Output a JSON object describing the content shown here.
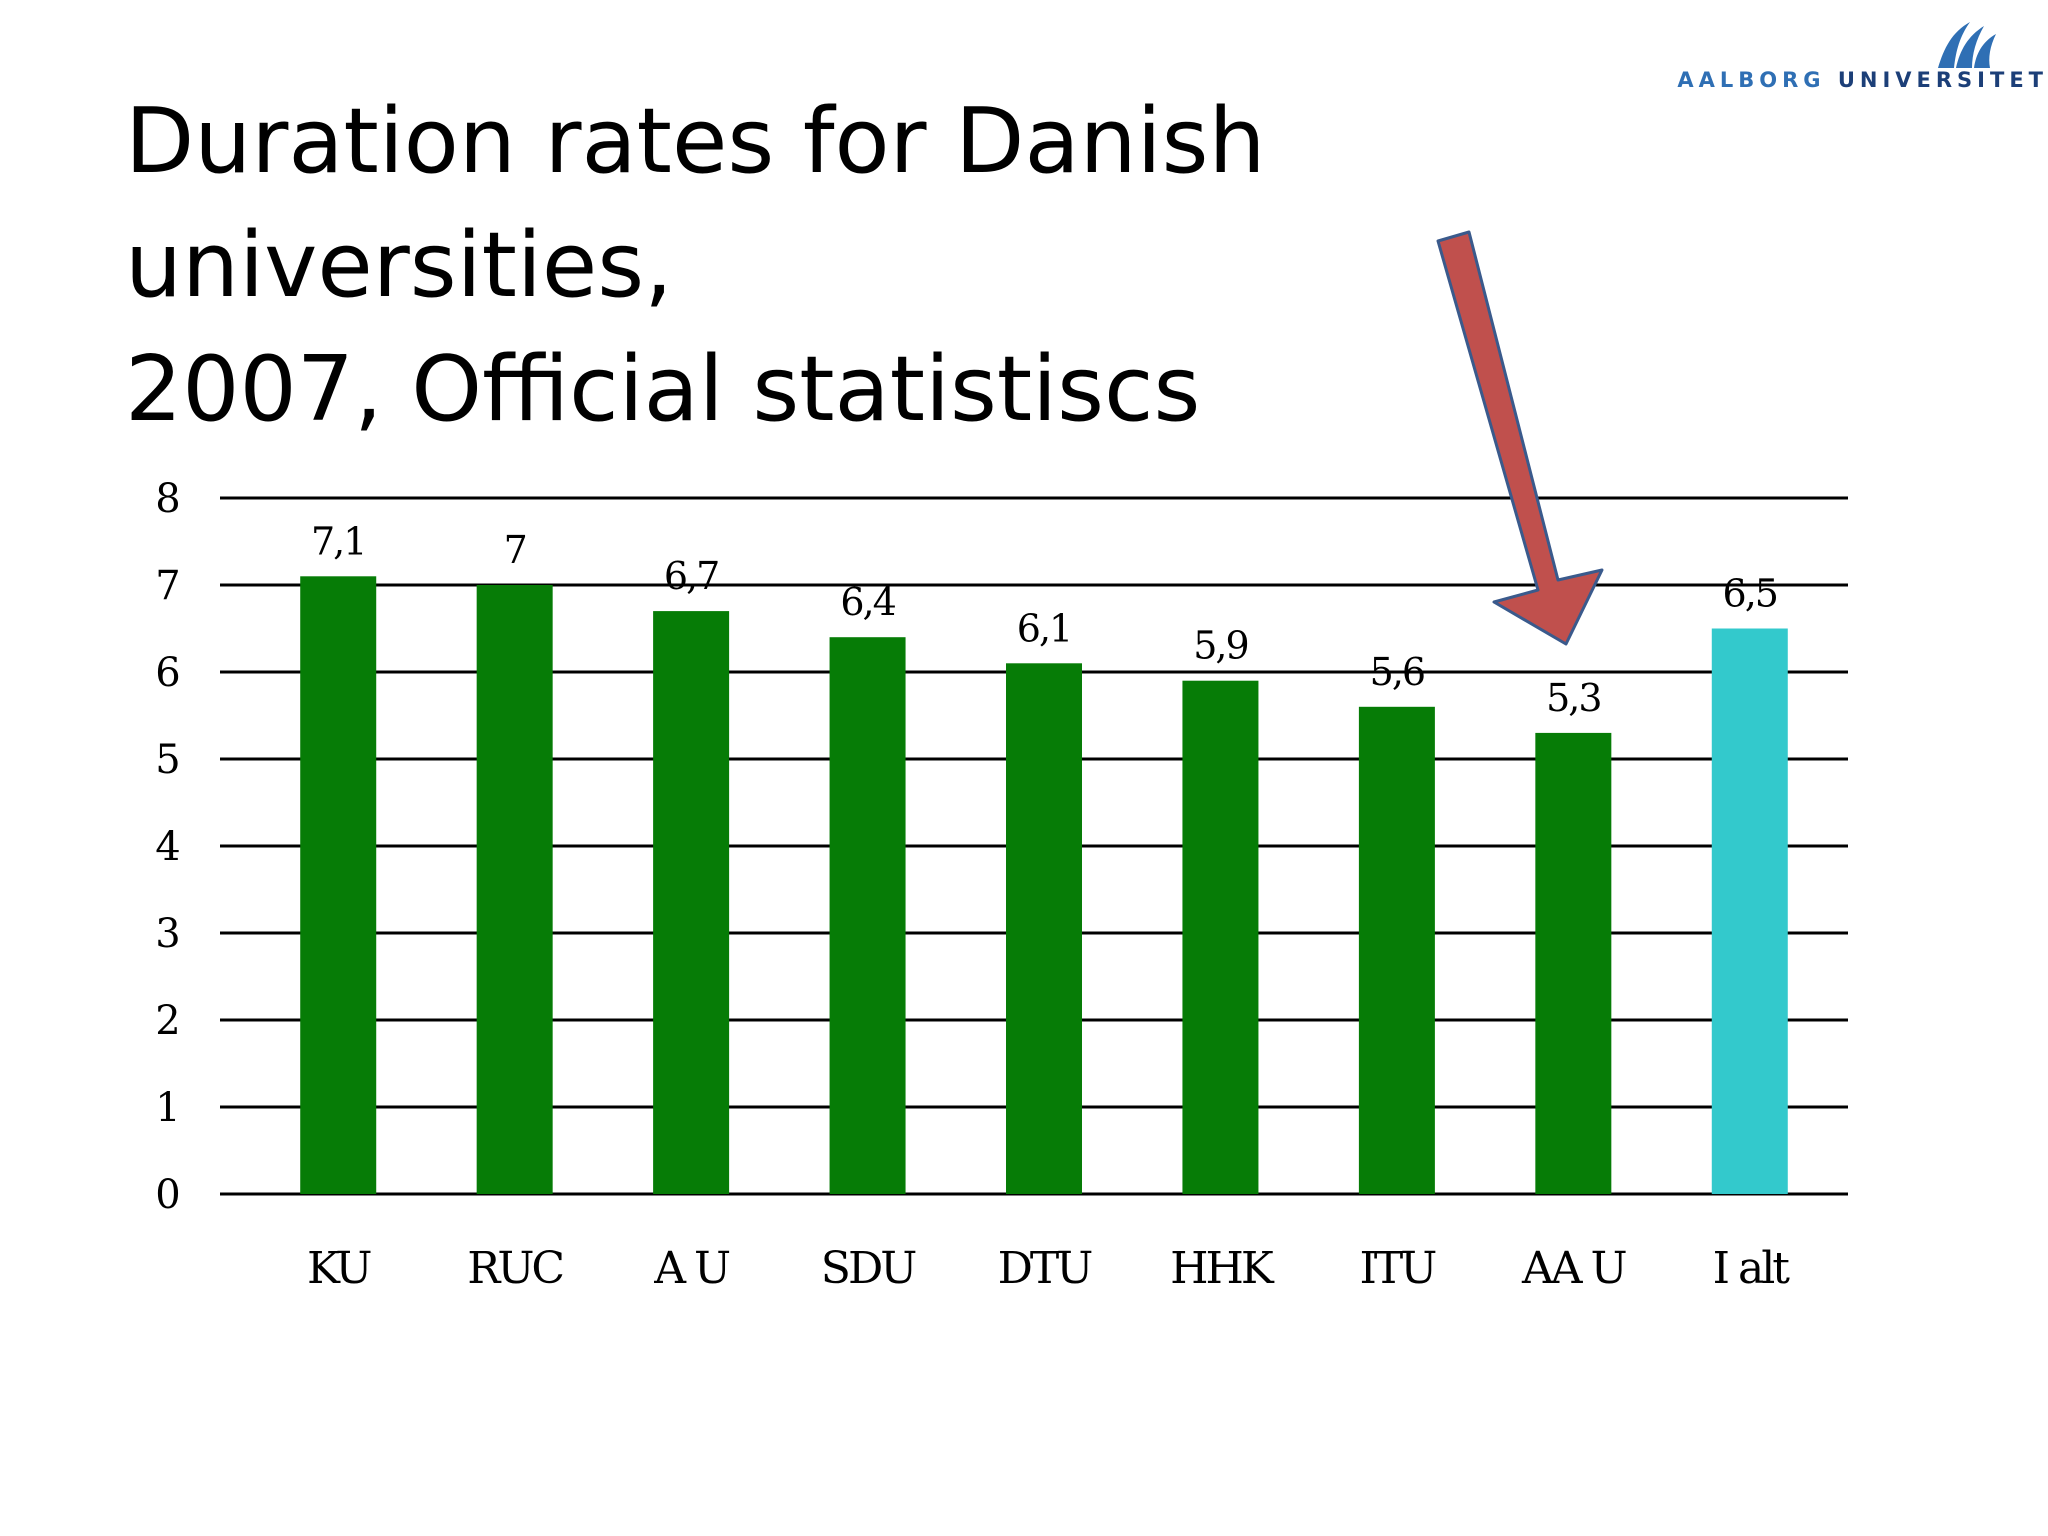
{
  "slide": {
    "title_line1": "Duration rates for Danish universities,",
    "title_line2": "2007, Official statistiscs"
  },
  "logo": {
    "word1": "AALBORG",
    "word2": "UNIVERSITET"
  },
  "colors": {
    "bar_primary": "#067c06",
    "bar_total": "#33c9cc",
    "arrow_fill": "#c0504d",
    "arrow_stroke": "#3a5a8c",
    "gridline": "#000000"
  },
  "chart_data": {
    "type": "bar",
    "title": "",
    "xlabel": "",
    "ylabel": "",
    "categories": [
      "KU",
      "RUC",
      "A U",
      "SDU",
      "DTU",
      "HHK",
      "ITU",
      "AA U",
      "I alt"
    ],
    "values": [
      7.1,
      7,
      6.7,
      6.4,
      6.1,
      5.9,
      5.6,
      5.3,
      6.5
    ],
    "value_labels": [
      "7,1",
      "7",
      "6,7",
      "6,4",
      "6,1",
      "5,9",
      "5,6",
      "5,3",
      "6,5"
    ],
    "highlight_index": 8,
    "ylim": [
      0,
      8
    ],
    "yticks": [
      "0",
      "1",
      "2",
      "3",
      "4",
      "5",
      "6",
      "7",
      "8"
    ],
    "grid": true,
    "annotation": "arrow pointing to AA U"
  }
}
